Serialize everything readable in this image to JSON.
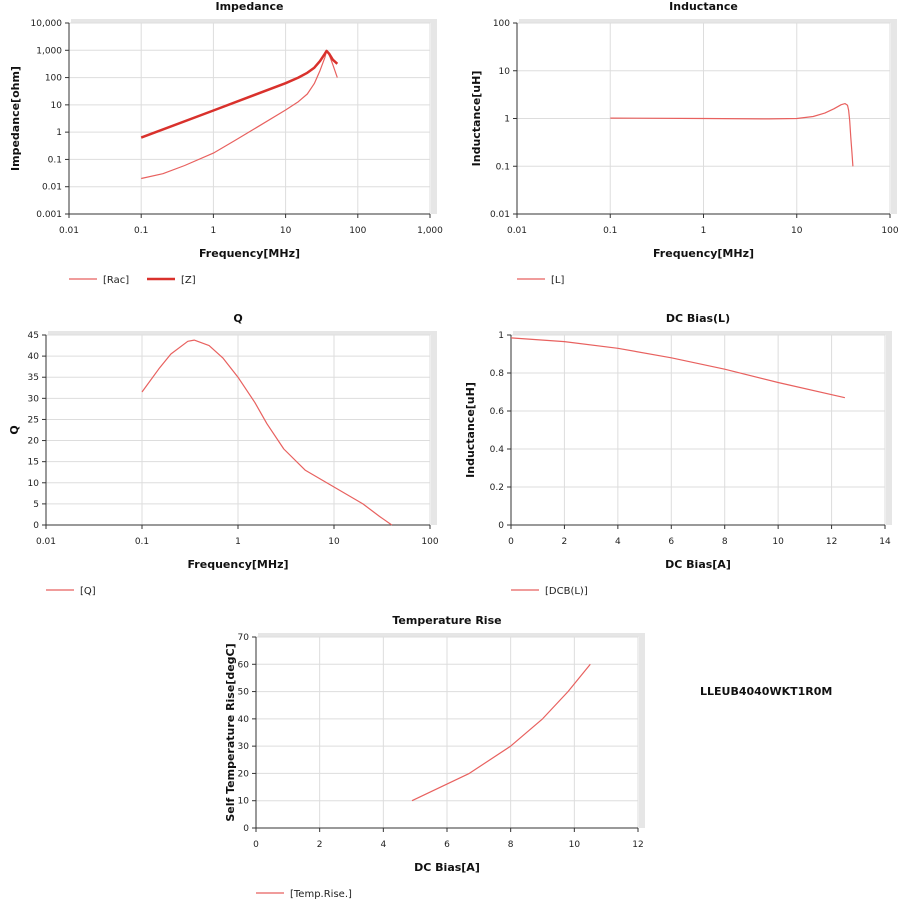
{
  "part_number": "LLEUB4040WKT1R0M",
  "colors": {
    "thin": "#e8615f",
    "thick": "#d9312c",
    "grid": "#dddddd",
    "axis": "#333333",
    "shadow": "#e6e6e6"
  },
  "chart_data": [
    {
      "type": "line",
      "title": "Impedance",
      "xlabel": "Frequency[MHz]",
      "ylabel": "Impedance[ohm]",
      "xscale": "log",
      "yscale": "log",
      "xlim": [
        0.01,
        1000
      ],
      "ylim": [
        0.001,
        10000
      ],
      "xticks": [
        "0.01",
        "0.1",
        "1",
        "10",
        "100",
        "1,000"
      ],
      "yticks": [
        "0.001",
        "0.01",
        "0.1",
        "1",
        "10",
        "100",
        "1,000",
        "10,000"
      ],
      "grid": true,
      "legend": "bottom-left",
      "series": [
        {
          "name": "[Rac]",
          "style": "thin",
          "x": [
            0.1,
            0.2,
            0.4,
            1,
            2,
            4,
            10,
            15,
            20,
            25,
            30,
            35,
            37,
            40,
            45,
            52
          ],
          "y": [
            0.02,
            0.03,
            0.06,
            0.17,
            0.5,
            1.5,
            6.5,
            13,
            25,
            60,
            180,
            550,
            950,
            700,
            300,
            100
          ]
        },
        {
          "name": "[Z]",
          "style": "thick",
          "x": [
            0.1,
            1,
            10,
            15,
            20,
            25,
            30,
            35,
            37,
            40,
            45,
            52
          ],
          "y": [
            0.63,
            6.2,
            62,
            100,
            150,
            230,
            400,
            750,
            950,
            750,
            450,
            320
          ]
        }
      ]
    },
    {
      "type": "line",
      "title": "Inductance",
      "xlabel": "Frequency[MHz]",
      "ylabel": "Inductance[uH]",
      "xscale": "log",
      "yscale": "log",
      "xlim": [
        0.01,
        100
      ],
      "ylim": [
        0.01,
        100
      ],
      "xticks": [
        "0.01",
        "0.1",
        "1",
        "10",
        "100"
      ],
      "yticks": [
        "0.01",
        "0.1",
        "1",
        "10",
        "100"
      ],
      "grid": true,
      "legend": "bottom-left",
      "series": [
        {
          "name": "[L]",
          "style": "thin",
          "x": [
            0.1,
            1,
            5,
            10,
            15,
            20,
            25,
            30,
            33,
            35,
            36,
            37,
            38,
            39,
            40
          ],
          "y": [
            1.02,
            1.0,
            0.98,
            1.0,
            1.1,
            1.3,
            1.6,
            1.95,
            2.05,
            1.9,
            1.5,
            0.9,
            0.4,
            0.2,
            0.1
          ]
        }
      ]
    },
    {
      "type": "line",
      "title": "Q",
      "xlabel": "Frequency[MHz]",
      "ylabel": "Q",
      "xscale": "log",
      "yscale": "linear",
      "xlim": [
        0.01,
        100
      ],
      "ylim": [
        0,
        45
      ],
      "xticks": [
        "0.01",
        "0.1",
        "1",
        "10",
        "100"
      ],
      "yticks": [
        "0",
        "5",
        "10",
        "15",
        "20",
        "25",
        "30",
        "35",
        "40",
        "45"
      ],
      "grid": true,
      "legend": "bottom-left",
      "series": [
        {
          "name": "[Q]",
          "style": "thin",
          "x": [
            0.1,
            0.15,
            0.2,
            0.3,
            0.35,
            0.5,
            0.7,
            1,
            1.5,
            2,
            3,
            5,
            10,
            20,
            30,
            40
          ],
          "y": [
            31.5,
            37,
            40.5,
            43.5,
            43.8,
            42.5,
            39.5,
            35,
            29,
            24,
            18,
            13,
            9,
            5,
            2,
            0
          ]
        }
      ]
    },
    {
      "type": "line",
      "title": "DC Bias(L)",
      "xlabel": "DC Bias[A]",
      "ylabel": "Inductance[uH]",
      "xscale": "linear",
      "yscale": "linear",
      "xlim": [
        0,
        14
      ],
      "ylim": [
        0,
        1
      ],
      "xticks": [
        "0",
        "2",
        "4",
        "6",
        "8",
        "10",
        "12",
        "14"
      ],
      "yticks": [
        "0",
        "0.2",
        "0.4",
        "0.6",
        "0.8",
        "1"
      ],
      "grid": true,
      "legend": "bottom-left",
      "series": [
        {
          "name": "[DCB(L)]",
          "style": "thin",
          "x": [
            0,
            2,
            4,
            6,
            8,
            10,
            12.5
          ],
          "y": [
            0.985,
            0.965,
            0.93,
            0.88,
            0.82,
            0.75,
            0.67
          ]
        }
      ]
    },
    {
      "type": "line",
      "title": "Temperature Rise",
      "xlabel": "DC Bias[A]",
      "ylabel": "Self Temperature Rise[degC]",
      "xscale": "linear",
      "yscale": "linear",
      "xlim": [
        0,
        12
      ],
      "ylim": [
        0,
        70
      ],
      "xticks": [
        "0",
        "2",
        "4",
        "6",
        "8",
        "10",
        "12"
      ],
      "yticks": [
        "0",
        "10",
        "20",
        "30",
        "40",
        "50",
        "60",
        "70"
      ],
      "grid": true,
      "legend": "bottom-left",
      "series": [
        {
          "name": "[Temp.Rise.]",
          "style": "thin",
          "x": [
            4.9,
            6.7,
            8,
            9,
            9.8,
            10.5
          ],
          "y": [
            10,
            20,
            30,
            40,
            50,
            60
          ]
        }
      ]
    }
  ]
}
